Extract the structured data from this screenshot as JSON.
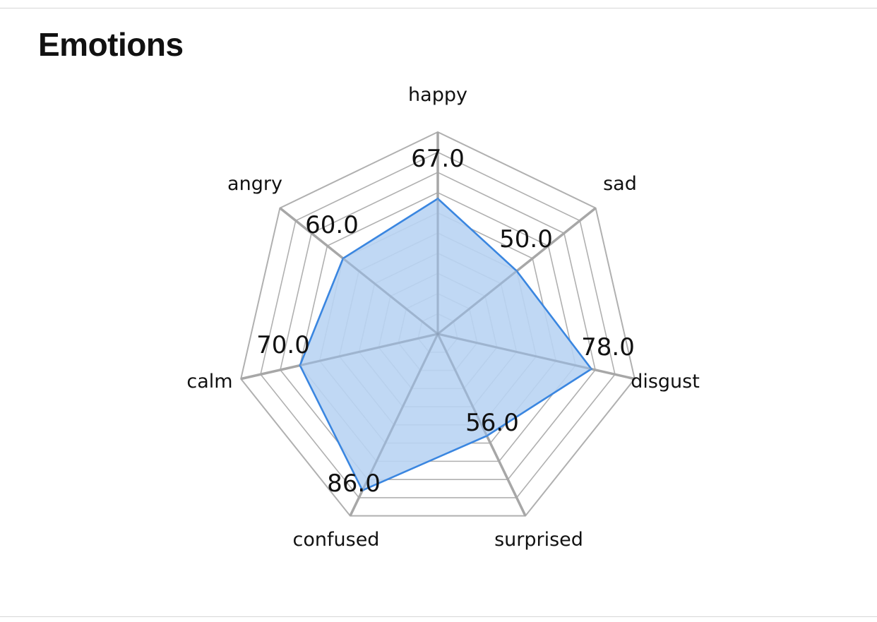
{
  "page": {
    "title": "Emotions"
  },
  "chart_data": {
    "type": "radar",
    "title": "Emotions",
    "categories": [
      "happy",
      "sad",
      "disgust",
      "surprised",
      "confused",
      "calm",
      "angry"
    ],
    "series": [
      {
        "values": [
          67.0,
          50.0,
          78.0,
          56.0,
          86.0,
          70.0,
          60.0
        ],
        "value_labels": [
          "67.0",
          "50.0",
          "78.0",
          "56.0",
          "86.0",
          "70.0",
          "60.0"
        ]
      }
    ],
    "rlim": [
      0,
      100
    ],
    "grid": true,
    "grid_rings": 10,
    "legend": "none",
    "colors": {
      "series_line": "#3a86e0",
      "series_fill": "#b9d4f3",
      "grid": "#b0b0b0",
      "axis": "#a7a7a7"
    }
  }
}
